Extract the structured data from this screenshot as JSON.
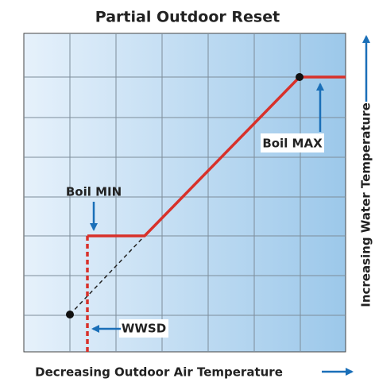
{
  "title": "Partial Outdoor Reset",
  "x_axis_label": "Decreasing Outdoor Air Temperature",
  "y_axis_label": "Increasing Water Temperature",
  "annotations": {
    "boil_min": "Boil MIN",
    "boil_max": "Boil MAX",
    "wwsd": "WWSD"
  }
}
